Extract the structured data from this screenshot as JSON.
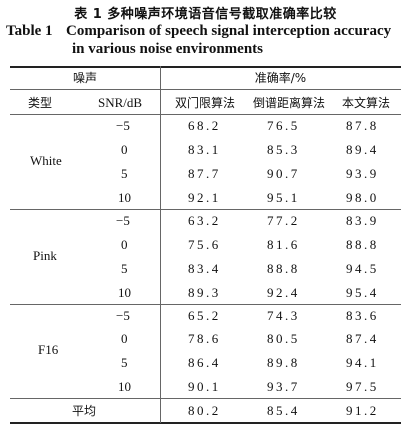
{
  "caption": {
    "cn": "表 1    多种噪声环境语音信号截取准确率比较",
    "en_number": "Table 1",
    "en_line1": "Comparison of speech signal interception accuracy",
    "en_line2": "in various noise environments"
  },
  "header": {
    "noise_group": "噪声",
    "accuracy_group": "准确率/%",
    "col_type": "类型",
    "col_snr": "SNR/dB",
    "col_m1": "双门限算法",
    "col_m2": "倒谱距离算法",
    "col_m3": "本文算法"
  },
  "groups": [
    {
      "type": "White",
      "rows": [
        {
          "snr": "−5",
          "m1": "68.2",
          "m2": "76.5",
          "m3": "87.8"
        },
        {
          "snr": "0",
          "m1": "83.1",
          "m2": "85.3",
          "m3": "89.4"
        },
        {
          "snr": "5",
          "m1": "87.7",
          "m2": "90.7",
          "m3": "93.9"
        },
        {
          "snr": "10",
          "m1": "92.1",
          "m2": "95.1",
          "m3": "98.0"
        }
      ]
    },
    {
      "type": "Pink",
      "rows": [
        {
          "snr": "−5",
          "m1": "63.2",
          "m2": "77.2",
          "m3": "83.9"
        },
        {
          "snr": "0",
          "m1": "75.6",
          "m2": "81.6",
          "m3": "88.8"
        },
        {
          "snr": "5",
          "m1": "83.4",
          "m2": "88.8",
          "m3": "94.5"
        },
        {
          "snr": "10",
          "m1": "89.3",
          "m2": "92.4",
          "m3": "95.4"
        }
      ]
    },
    {
      "type": "F16",
      "rows": [
        {
          "snr": "−5",
          "m1": "65.2",
          "m2": "74.3",
          "m3": "83.6"
        },
        {
          "snr": "0",
          "m1": "78.6",
          "m2": "80.5",
          "m3": "87.4"
        },
        {
          "snr": "5",
          "m1": "86.4",
          "m2": "89.8",
          "m3": "94.1"
        },
        {
          "snr": "10",
          "m1": "90.1",
          "m2": "93.7",
          "m3": "97.5"
        }
      ]
    }
  ],
  "average": {
    "label": "平均",
    "m1": "80.2",
    "m2": "85.4",
    "m3": "91.2"
  }
}
